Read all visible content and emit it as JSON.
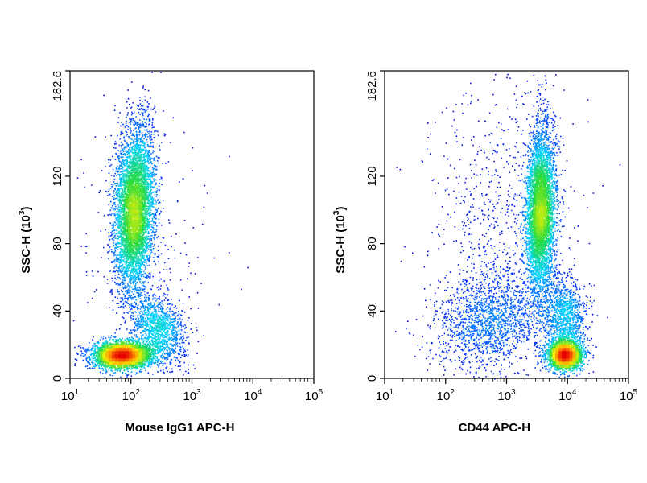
{
  "chart_data": [
    {
      "type": "scatter",
      "title": "",
      "xlabel": "Mouse IgG1 APC-H",
      "ylabel_main": "SSC-H (10",
      "ylabel_exp": "3",
      "ylabel_close": ")",
      "x_scale": "log",
      "xlim": [
        10,
        100000
      ],
      "ylim": [
        0,
        182.6
      ],
      "x_ticks": [
        {
          "base": "10",
          "exp": "1"
        },
        {
          "base": "10",
          "exp": "2"
        },
        {
          "base": "10",
          "exp": "3"
        },
        {
          "base": "10",
          "exp": "4"
        },
        {
          "base": "10",
          "exp": "5"
        }
      ],
      "y_ticks": [
        "0",
        "40",
        "80",
        "120",
        "182.6"
      ],
      "y_tick_values": [
        0,
        40,
        80,
        120,
        182.6
      ],
      "grid": false,
      "colormap": "density: blue-cyan-green-yellow-red",
      "populations": [
        {
          "x_log": 2.05,
          "y": 100,
          "sx": 0.16,
          "sy": 24,
          "rho": 0.15,
          "n": 5500
        },
        {
          "x_log": 1.85,
          "y": 14,
          "sx": 0.25,
          "sy": 4,
          "rho": 0.0,
          "n": 3500
        },
        {
          "x_log": 2.45,
          "y": 30,
          "sx": 0.22,
          "sy": 10,
          "rho": -0.3,
          "n": 1200
        },
        {
          "x_log": 2.2,
          "y": 70,
          "sx": 0.6,
          "sy": 45,
          "rho": 0.0,
          "n": 250
        }
      ]
    },
    {
      "type": "scatter",
      "title": "",
      "xlabel": "CD44 APC-H",
      "ylabel_main": "SSC-H (10",
      "ylabel_exp": "3",
      "ylabel_close": ")",
      "x_scale": "log",
      "xlim": [
        10,
        100000
      ],
      "ylim": [
        0,
        182.6
      ],
      "x_ticks": [
        {
          "base": "10",
          "exp": "1"
        },
        {
          "base": "10",
          "exp": "2"
        },
        {
          "base": "10",
          "exp": "3"
        },
        {
          "base": "10",
          "exp": "4"
        },
        {
          "base": "10",
          "exp": "5"
        }
      ],
      "y_ticks": [
        "0",
        "40",
        "80",
        "120",
        "182.6"
      ],
      "y_tick_values": [
        0,
        40,
        80,
        120,
        182.6
      ],
      "grid": false,
      "colormap": "density: blue-cyan-green-yellow-red",
      "populations": [
        {
          "x_log": 3.55,
          "y": 100,
          "sx": 0.11,
          "sy": 24,
          "rho": 0.1,
          "n": 5000
        },
        {
          "x_log": 3.95,
          "y": 14,
          "sx": 0.14,
          "sy": 4,
          "rho": 0.0,
          "n": 2500
        },
        {
          "x_log": 3.95,
          "y": 35,
          "sx": 0.17,
          "sy": 12,
          "rho": 0.0,
          "n": 1200
        },
        {
          "x_log": 2.7,
          "y": 35,
          "sx": 0.45,
          "sy": 15,
          "rho": 0.2,
          "n": 1500
        },
        {
          "x_log": 2.9,
          "y": 90,
          "sx": 0.6,
          "sy": 45,
          "rho": 0.0,
          "n": 800
        }
      ]
    }
  ]
}
